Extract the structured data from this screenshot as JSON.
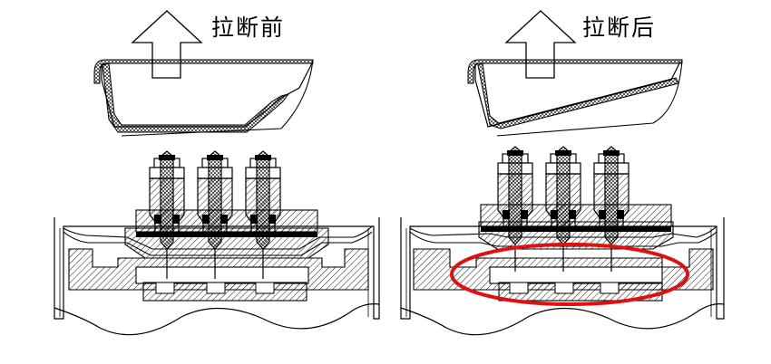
{
  "labels": {
    "before": "拉断前",
    "after": "拉断后"
  },
  "colors": {
    "line": "#000000",
    "highlight": "#e01010",
    "background": "#ffffff"
  },
  "panels": [
    {
      "id": "before",
      "state": "before-break"
    },
    {
      "id": "after",
      "state": "after-break",
      "highlight": "red-ellipse"
    }
  ]
}
